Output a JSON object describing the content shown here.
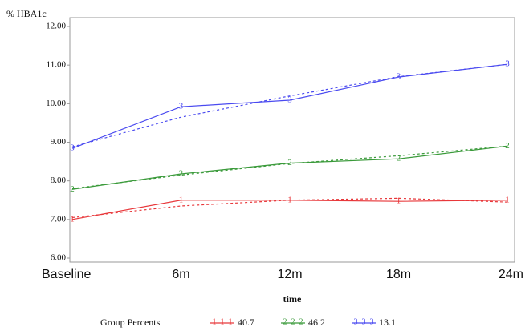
{
  "chart_data": {
    "type": "line",
    "y_label": "% HBA1c",
    "x_label": "time",
    "legend_title": "Group Percents",
    "categories": [
      "Baseline",
      "6m",
      "12m",
      "18m",
      "24m"
    ],
    "ylim": [
      6,
      12
    ],
    "yticks": [
      {
        "value": 6,
        "label": "6.00"
      },
      {
        "value": 7,
        "label": "7.00"
      },
      {
        "value": 8,
        "label": "8.00"
      },
      {
        "value": 9,
        "label": "9.00"
      },
      {
        "value": 10,
        "label": "10.00"
      },
      {
        "value": 11,
        "label": "11.00"
      },
      {
        "value": 12,
        "label": "12.00"
      }
    ],
    "series": [
      {
        "name": "40.7",
        "marker": "1",
        "color": "#e8373a",
        "values": [
          7.0,
          7.5,
          7.5,
          7.47,
          7.5
        ],
        "fit": [
          7.05,
          7.35,
          7.5,
          7.55,
          7.45
        ]
      },
      {
        "name": "46.2",
        "marker": "2",
        "color": "#3a9a3a",
        "values": [
          7.78,
          8.18,
          8.46,
          8.57,
          8.9
        ],
        "fit": [
          7.8,
          8.15,
          8.45,
          8.65,
          8.9
        ]
      },
      {
        "name": "13.1",
        "marker": "3",
        "color": "#4a4af0",
        "values": [
          8.84,
          9.92,
          10.09,
          10.69,
          11.02
        ],
        "fit": [
          8.88,
          9.65,
          10.2,
          10.7,
          11.02
        ]
      }
    ]
  }
}
